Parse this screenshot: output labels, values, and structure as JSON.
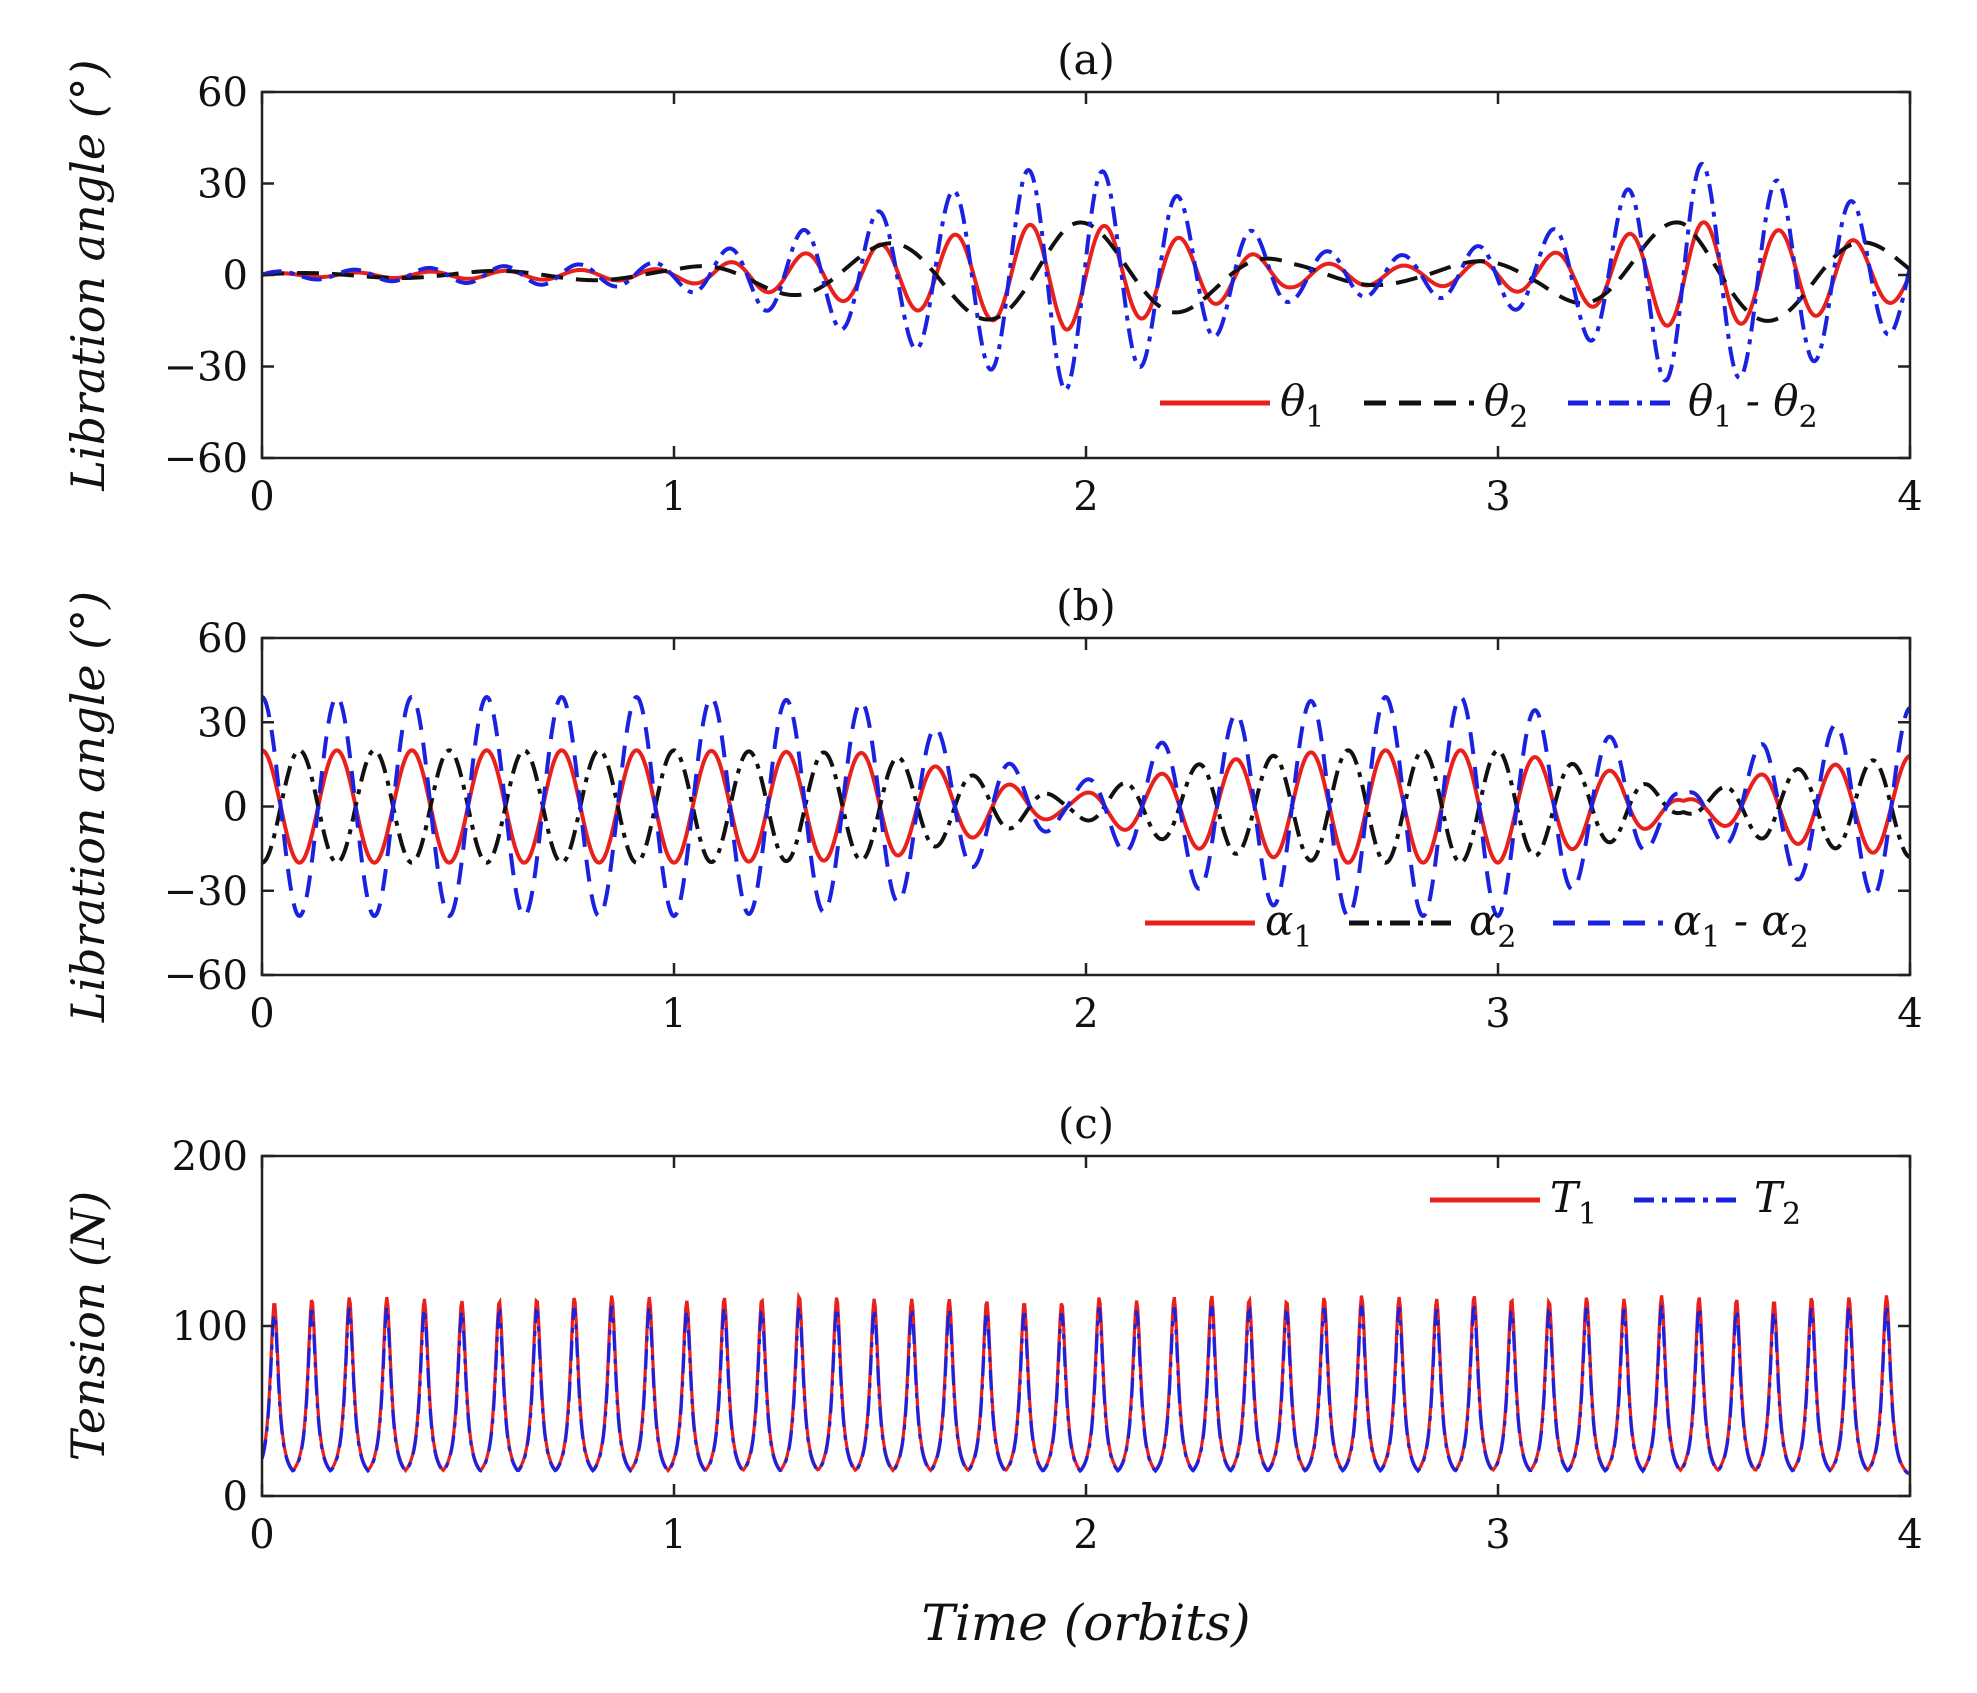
{
  "figure": {
    "xlabel": "Time (orbits)"
  },
  "chart_data": [
    {
      "type": "line",
      "title": "(a)",
      "xlabel": "Time (orbits)",
      "ylabel": "Libration angle (°)",
      "xlim": [
        0,
        4
      ],
      "ylim": [
        -60,
        60
      ],
      "xticks": [
        "0",
        "1",
        "2",
        "3",
        "4"
      ],
      "yticks": [
        "60",
        "30",
        "0",
        "−30",
        "−60"
      ],
      "legend": "bottom-right",
      "series": [
        {
          "name": "θ1",
          "label": "θ",
          "sub": "1",
          "color": "#e8211c",
          "dash": "solid",
          "description": "oscillation ~5.5 cycles/orbit, near 0 before orbit 1, peaks ~18° near 1.95 and 3.45 orbits"
        },
        {
          "name": "θ2",
          "label": "θ",
          "sub": "2",
          "color": "#111111",
          "dash": "dashed",
          "description": "slow oscillation ~2.1 cycles/orbit, amplitude ~18°"
        },
        {
          "name": "θ1 - θ2",
          "label": "θ",
          "sub": "1",
          "label2": " - θ",
          "sub2": "2",
          "color": "#1a22e0",
          "dash": "dashdot",
          "description": "difference, peaks ~38° near 1.95 and 3.45 orbits"
        }
      ],
      "peak_envelope": {
        "x": [
          0,
          1,
          1.5,
          1.95,
          2.2,
          2.5,
          2.8,
          3.1,
          3.45,
          3.8,
          4
        ],
        "y": [
          0.5,
          2,
          10,
          18,
          13,
          4,
          3,
          6,
          18,
          13,
          8
        ]
      }
    },
    {
      "type": "line",
      "title": "(b)",
      "xlabel": "Time (orbits)",
      "ylabel": "Libration angle (°)",
      "xlim": [
        0,
        4
      ],
      "ylim": [
        -60,
        60
      ],
      "xticks": [
        "0",
        "1",
        "2",
        "3",
        "4"
      ],
      "yticks": [
        "60",
        "30",
        "0",
        "−30",
        "−60"
      ],
      "legend": "bottom-right",
      "series": [
        {
          "name": "α1",
          "label": "α",
          "sub": "1",
          "color": "#e8211c",
          "dash": "solid",
          "description": "oscillation ~5.5 cycles/orbit, amplitude ~20°, beats near 1.9 and 3.45 orbits"
        },
        {
          "name": "α2",
          "label": "α",
          "sub": "2",
          "color": "#111111",
          "dash": "dashdot",
          "description": "anti-phase oscillation, amplitude ~20°"
        },
        {
          "name": "α1 - α2",
          "label": "α",
          "sub": "1",
          "label2": " - α",
          "sub2": "2",
          "color": "#1a22e0",
          "dash": "dashed",
          "description": "difference, amplitude ~38°"
        }
      ],
      "amplitude_envelope": {
        "x": [
          0,
          0.5,
          1.0,
          1.5,
          1.7,
          1.95,
          2.3,
          2.6,
          3.0,
          3.3,
          3.45,
          3.65,
          4.0
        ],
        "y": [
          20,
          20,
          20,
          19,
          12,
          3,
          16,
          20,
          20,
          12,
          2,
          12,
          18
        ]
      }
    },
    {
      "type": "line",
      "title": "(c)",
      "xlabel": "Time (orbits)",
      "ylabel": "Tension (N)",
      "xlim": [
        0,
        4
      ],
      "ylim": [
        0,
        200
      ],
      "xticks": [
        "0",
        "1",
        "2",
        "3",
        "4"
      ],
      "yticks": [
        "200",
        "100",
        "0"
      ],
      "legend": "top-right",
      "series": [
        {
          "name": "T1",
          "label": "T",
          "sub": "1",
          "color": "#e8211c",
          "dash": "solid",
          "description": "periodic spikes every ~0.091 orbits, baseline ~8 N"
        },
        {
          "name": "T2",
          "label": "T",
          "sub": "2",
          "color": "#1a22e0",
          "dash": "dashdot",
          "description": "nearly identical to T1"
        }
      ],
      "baseline": 8,
      "spike_period": 0.091,
      "first_peak": 0.03,
      "peaks": [
        114,
        116,
        117,
        117,
        116,
        115,
        115,
        116,
        117,
        118,
        117,
        115,
        117,
        116,
        118,
        117,
        116,
        116,
        116,
        115,
        114,
        114,
        117,
        115,
        117,
        118,
        116,
        115,
        117,
        118,
        117,
        116,
        118,
        116,
        115,
        117,
        116,
        118,
        117,
        116,
        115,
        117,
        117,
        118
      ]
    }
  ]
}
